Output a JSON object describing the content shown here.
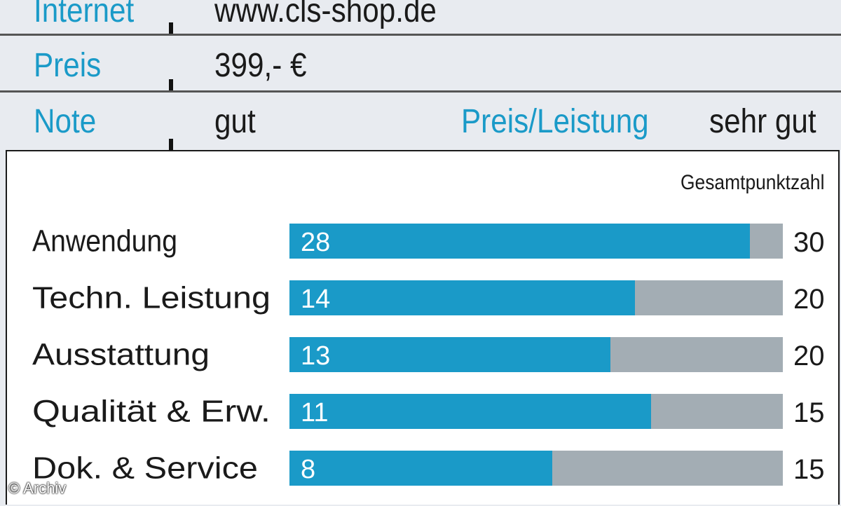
{
  "info": {
    "internet_label": "Internet",
    "internet_value": "www.cls-shop.de",
    "preis_label": "Preis",
    "preis_value": "399,- €",
    "note_label": "Note",
    "note_value": "gut",
    "pl_label": "Preis/Leistung",
    "pl_value": "sehr gut"
  },
  "chart_data": {
    "type": "bar",
    "orientation": "horizontal",
    "title": "",
    "total_header": "Gesamtpunktzahl",
    "categories": [
      "Anwendung",
      "Techn. Leistung",
      "Ausstattung",
      "Qualität & Erw.",
      "Dok. & Service"
    ],
    "values": [
      28,
      14,
      13,
      11,
      8
    ],
    "max_values": [
      30,
      20,
      20,
      15,
      15
    ],
    "colors": {
      "score": "#1a9ac8",
      "remainder": "#a3adb4"
    }
  },
  "credit": "© Archiv"
}
